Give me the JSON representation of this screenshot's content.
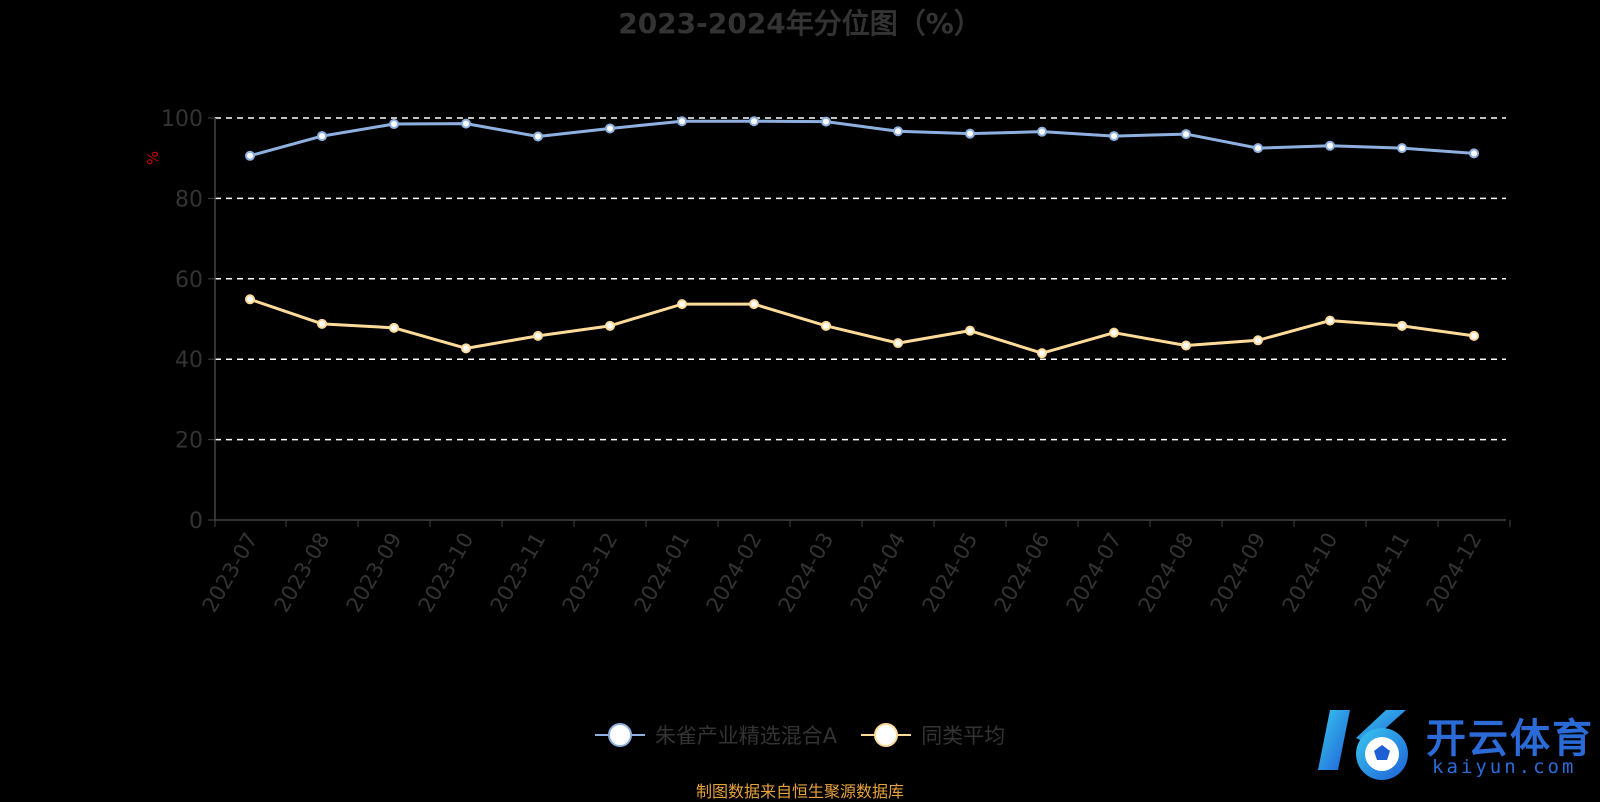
{
  "chart_data": {
    "type": "line",
    "title": "2023-2024年分位图（%）",
    "ylabel": "%",
    "ylim": [
      0,
      100
    ],
    "yticks": [
      "0",
      "20",
      "40",
      "60",
      "80",
      "100"
    ],
    "grid": true,
    "categories": [
      "2023-07",
      "2023-08",
      "2023-09",
      "2023-10",
      "2023-11",
      "2023-12",
      "2024-01",
      "2024-02",
      "2024-03",
      "2024-04",
      "2024-05",
      "2024-06",
      "2024-07",
      "2024-08",
      "2024-09",
      "2024-10",
      "2024-11",
      "2024-12"
    ],
    "series": [
      {
        "name": "朱雀产业精选混合A",
        "color": "#8eb0e1",
        "values": [
          90.6,
          95.5,
          98.5,
          98.6,
          95.4,
          97.4,
          99.2,
          99.2,
          99.1,
          96.7,
          96.1,
          96.6,
          95.5,
          96.0,
          92.5,
          93.1,
          92.5,
          91.2
        ]
      },
      {
        "name": "同类平均",
        "color": "#ffdb9a",
        "values": [
          54.9,
          48.8,
          47.8,
          42.7,
          45.8,
          48.3,
          53.7,
          53.7,
          48.3,
          44.0,
          47.1,
          41.5,
          46.6,
          43.4,
          44.7,
          49.6,
          48.3,
          45.8
        ]
      }
    ],
    "legend_position": "bottom-center"
  },
  "source_note": "制图数据来自恒生聚源数据库",
  "logo": {
    "main_text": "开云体育",
    "sub_text": "kaiyun.com",
    "color": "#2a6bd8"
  }
}
